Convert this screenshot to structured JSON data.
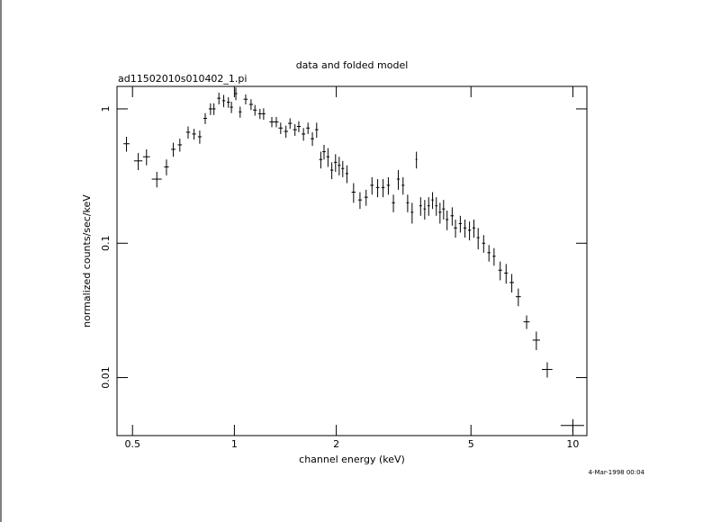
{
  "chart_data": {
    "type": "errorbar",
    "title": "data and folded model",
    "subtitle": "ad11502010s010402_1.pi",
    "x_label": "channel energy (keV)",
    "y_label": "normalized counts/sec/keV",
    "timestamp": "4-Mar-1998 00:04",
    "xscale": "log",
    "yscale": "log",
    "xlim": [
      0.45,
      11
    ],
    "ylim": [
      0.0037,
      1.47
    ],
    "xticks": [
      0.5,
      1,
      2,
      5,
      10
    ],
    "yticks": [
      0.01,
      0.1,
      1
    ],
    "color": "#000000",
    "x": [
      0.48,
      0.52,
      0.55,
      0.59,
      0.63,
      0.66,
      0.69,
      0.73,
      0.76,
      0.79,
      0.82,
      0.85,
      0.87,
      0.9,
      0.93,
      0.96,
      0.98,
      1.01,
      1.04,
      1.08,
      1.12,
      1.15,
      1.19,
      1.22,
      1.29,
      1.33,
      1.37,
      1.42,
      1.46,
      1.51,
      1.55,
      1.6,
      1.65,
      1.7,
      1.75,
      1.8,
      1.84,
      1.89,
      1.94,
      1.99,
      2.04,
      2.09,
      2.15,
      2.25,
      2.35,
      2.45,
      2.55,
      2.65,
      2.75,
      2.85,
      2.95,
      3.05,
      3.15,
      3.25,
      3.35,
      3.45,
      3.55,
      3.65,
      3.75,
      3.85,
      3.95,
      4.05,
      4.15,
      4.25,
      4.4,
      4.5,
      4.65,
      4.8,
      4.95,
      5.1,
      5.25,
      5.45,
      5.65,
      5.85,
      6.1,
      6.35,
      6.6,
      6.9,
      7.3,
      7.8,
      8.4,
      10
    ],
    "xerr": [
      0.01,
      0.015,
      0.013,
      0.02,
      0.01,
      0.01,
      0.01,
      0.01,
      0.01,
      0.01,
      0.01,
      0.01,
      0.01,
      0.01,
      0.01,
      0.01,
      0.01,
      0.01,
      0.01,
      0.015,
      0.015,
      0.015,
      0.015,
      0.015,
      0.02,
      0.02,
      0.02,
      0.02,
      0.02,
      0.02,
      0.02,
      0.02,
      0.02,
      0.02,
      0.02,
      0.02,
      0.02,
      0.02,
      0.02,
      0.02,
      0.02,
      0.02,
      0.02,
      0.03,
      0.03,
      0.03,
      0.03,
      0.03,
      0.03,
      0.03,
      0.03,
      0.03,
      0.03,
      0.03,
      0.03,
      0.02,
      0.03,
      0.03,
      0.03,
      0.03,
      0.03,
      0.04,
      0.04,
      0.04,
      0.05,
      0.05,
      0.05,
      0.05,
      0.05,
      0.05,
      0.05,
      0.06,
      0.06,
      0.06,
      0.08,
      0.08,
      0.1,
      0.12,
      0.15,
      0.2,
      0.3,
      0.8
    ],
    "values": [
      0.55,
      0.41,
      0.44,
      0.3,
      0.37,
      0.5,
      0.54,
      0.67,
      0.65,
      0.62,
      0.85,
      1.0,
      1.0,
      1.2,
      1.15,
      1.12,
      1.03,
      1.3,
      0.95,
      1.18,
      1.08,
      0.98,
      0.92,
      0.92,
      0.8,
      0.8,
      0.72,
      0.68,
      0.78,
      0.7,
      0.74,
      0.65,
      0.72,
      0.6,
      0.7,
      0.42,
      0.48,
      0.44,
      0.35,
      0.4,
      0.38,
      0.36,
      0.33,
      0.24,
      0.21,
      0.22,
      0.27,
      0.26,
      0.26,
      0.27,
      0.2,
      0.3,
      0.27,
      0.2,
      0.17,
      0.42,
      0.19,
      0.18,
      0.19,
      0.21,
      0.19,
      0.17,
      0.18,
      0.15,
      0.16,
      0.13,
      0.14,
      0.13,
      0.125,
      0.13,
      0.11,
      0.1,
      0.085,
      0.08,
      0.063,
      0.06,
      0.051,
      0.04,
      0.026,
      0.019,
      0.0115,
      0.0044
    ],
    "yerr": [
      0.07,
      0.06,
      0.06,
      0.04,
      0.05,
      0.06,
      0.06,
      0.07,
      0.06,
      0.07,
      0.08,
      0.1,
      0.1,
      0.12,
      0.12,
      0.1,
      0.1,
      0.14,
      0.09,
      0.1,
      0.1,
      0.09,
      0.08,
      0.09,
      0.07,
      0.07,
      0.07,
      0.07,
      0.07,
      0.07,
      0.07,
      0.07,
      0.07,
      0.07,
      0.09,
      0.06,
      0.06,
      0.07,
      0.05,
      0.06,
      0.06,
      0.05,
      0.05,
      0.04,
      0.03,
      0.03,
      0.04,
      0.04,
      0.04,
      0.04,
      0.03,
      0.05,
      0.04,
      0.03,
      0.03,
      0.06,
      0.03,
      0.03,
      0.03,
      0.03,
      0.03,
      0.03,
      0.03,
      0.025,
      0.025,
      0.02,
      0.02,
      0.02,
      0.02,
      0.02,
      0.02,
      0.015,
      0.012,
      0.012,
      0.01,
      0.01,
      0.008,
      0.006,
      0.003,
      0.003,
      0.0015,
      0.0005
    ]
  }
}
